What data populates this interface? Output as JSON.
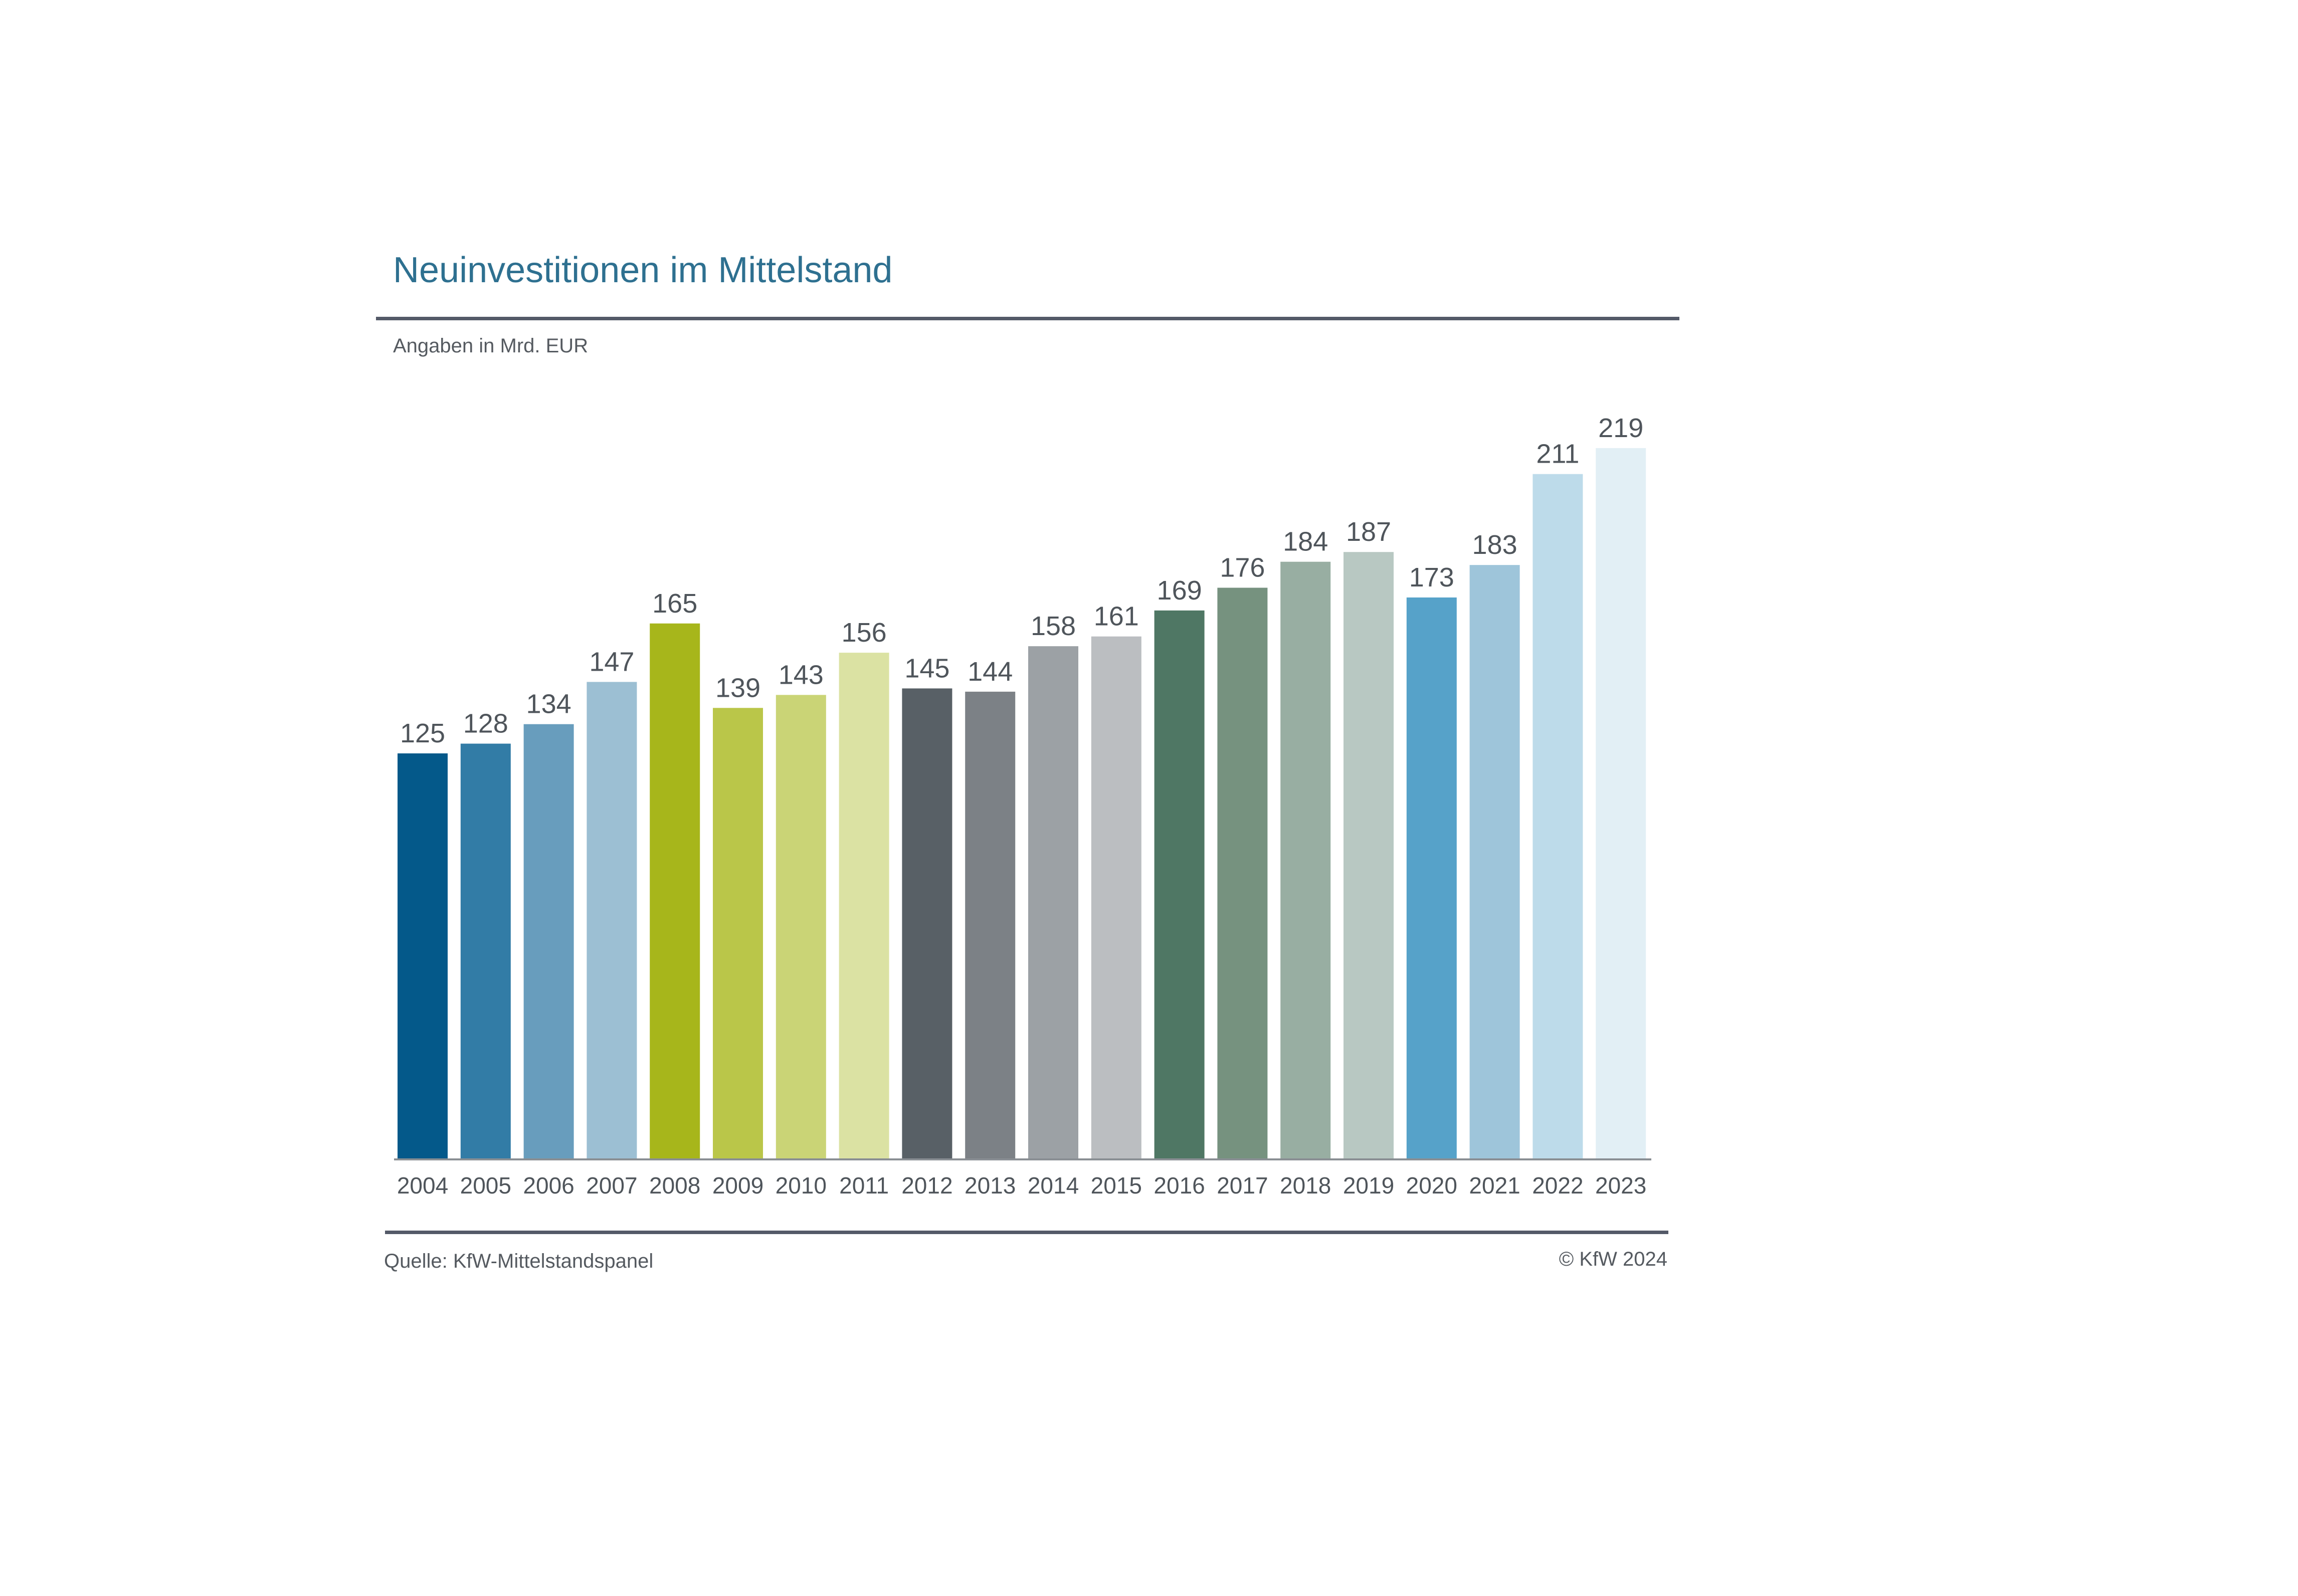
{
  "chart_data": {
    "type": "bar",
    "title": "Neuinvestitionen im Mittelstand",
    "subtitle": "Angaben in Mrd. EUR",
    "categories": [
      "2004",
      "2005",
      "2006",
      "2007",
      "2008",
      "2009",
      "2010",
      "2011",
      "2012",
      "2013",
      "2014",
      "2015",
      "2016",
      "2017",
      "2018",
      "2019",
      "2020",
      "2021",
      "2022",
      "2023"
    ],
    "values": [
      125,
      128,
      134,
      147,
      165,
      139,
      143,
      156,
      145,
      144,
      158,
      161,
      169,
      176,
      184,
      187,
      173,
      183,
      211,
      219
    ],
    "colors": [
      "#04598a",
      "#327ca6",
      "#689dbd",
      "#9cbfd3",
      "#a7b61b",
      "#bac649",
      "#cad476",
      "#dbe2a3",
      "#586066",
      "#7c8186",
      "#9ca1a5",
      "#bbbec1",
      "#4f7764",
      "#76927f",
      "#98aea2",
      "#b8c8c2",
      "#56a2c9",
      "#9ec5da",
      "#bddbea",
      "#e2eff5"
    ],
    "xlabel": "",
    "ylabel": "",
    "ylim": [
      0,
      219
    ],
    "grid": false,
    "data_labels": true
  },
  "footer": {
    "source": "Quelle: KfW-Mittelstandspanel",
    "copyright": "© KfW 2024"
  }
}
